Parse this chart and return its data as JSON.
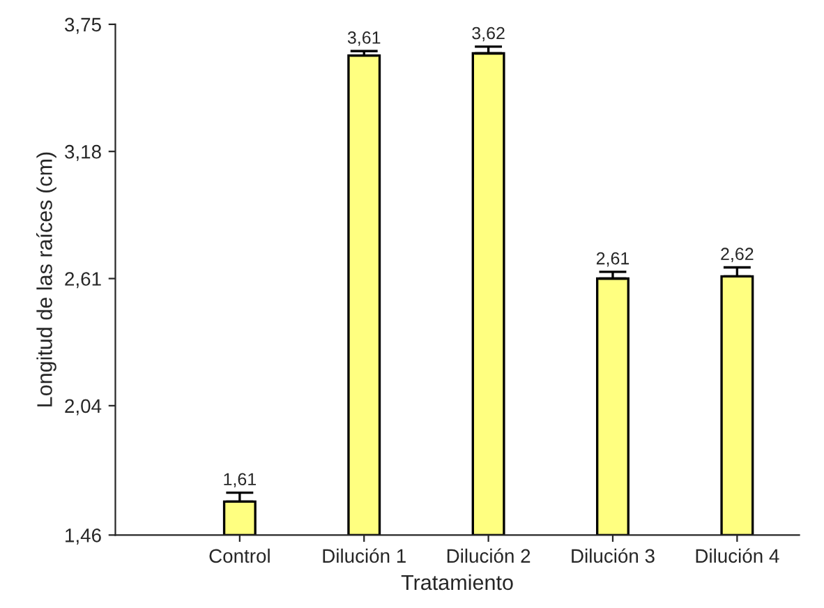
{
  "chart_data": {
    "type": "bar",
    "xlabel": "Tratamiento",
    "ylabel": "Longitud de las raíces (cm)",
    "categories": [
      "Control",
      "Dilución 1",
      "Dilución 2",
      "Dilución 3",
      "Dilución 4"
    ],
    "values": [
      1.61,
      3.61,
      3.62,
      2.61,
      2.62
    ],
    "errors": [
      0.04,
      0.02,
      0.03,
      0.03,
      0.04
    ],
    "value_labels": [
      "1,61",
      "3,61",
      "3,62",
      "2,61",
      "2,62"
    ],
    "color": "#ffff80",
    "ylim": [
      1.46,
      3.75
    ],
    "yticks": [
      {
        "value": 1.46,
        "label": "1,46"
      },
      {
        "value": 2.04,
        "label": "2,04"
      },
      {
        "value": 2.61,
        "label": "2,61"
      },
      {
        "value": 3.18,
        "label": "3,18"
      },
      {
        "value": 3.75,
        "label": "3,75"
      }
    ],
    "grid": false,
    "legend": false
  }
}
